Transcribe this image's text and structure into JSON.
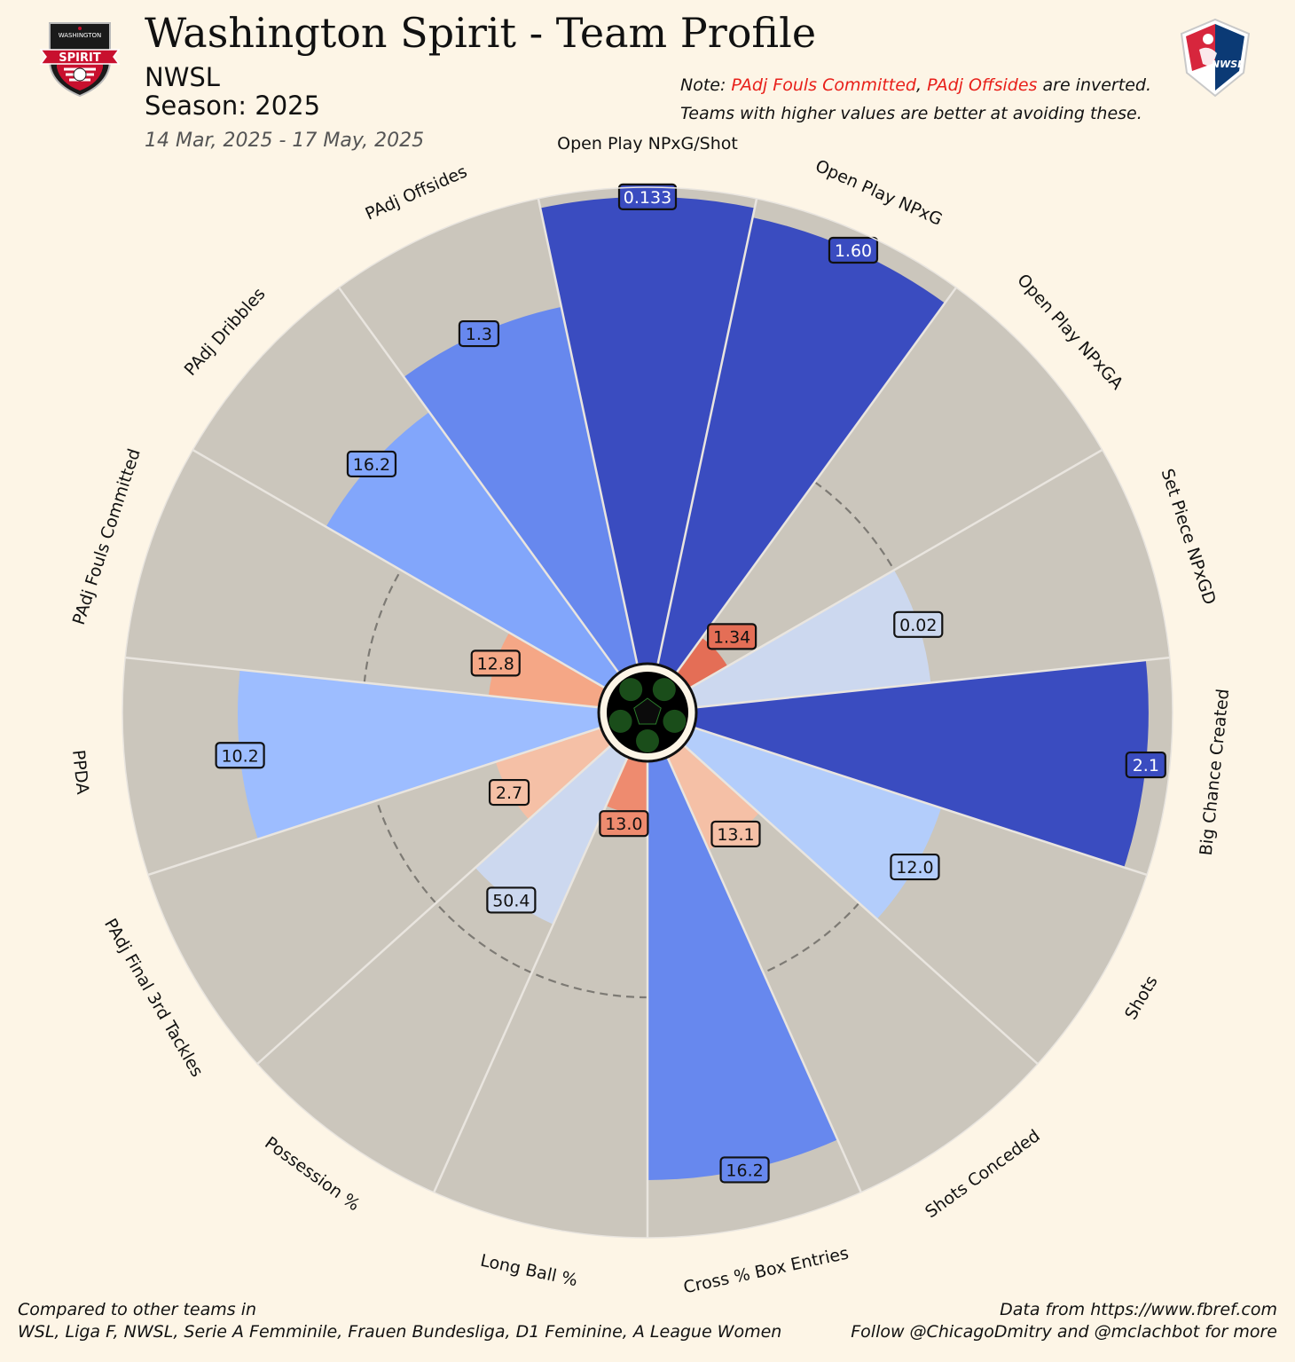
{
  "header": {
    "title": "Washington Spirit - Team Profile",
    "league": "NWSL",
    "season": "Season: 2025",
    "date_range": "14 Mar, 2025 - 17 May, 2025"
  },
  "note": {
    "prefix": "Note: ",
    "inverted_1": "PAdj Fouls Committed",
    "sep": ", ",
    "inverted_2": "PAdj Offsides",
    "suffix": " are inverted.",
    "line2": "Teams with higher values are better at avoiding these."
  },
  "footer": {
    "left_line1": "Compared to other teams in",
    "left_line2": "WSL, Liga F, NWSL, Serie A Femminile, Frauen Bundesliga, D1 Feminine, A League Women",
    "right_line1": "Data from https://www.fbref.com",
    "right_line2": "Follow @ChicagoDmitry and @mclachbot for more"
  },
  "logos": {
    "left": {
      "banner_text": "SPIRIT",
      "top_text": "WASHINGTON",
      "colors": [
        "#1a1a1a",
        "#c8102e",
        "#ffffff"
      ]
    },
    "right": {
      "text": "NWSL",
      "colors": [
        "#d7263d",
        "#0b3a75",
        "#ffffff"
      ]
    }
  },
  "chart_data": {
    "type": "polar-bar",
    "scale": "percentile",
    "rlim": [
      0,
      100
    ],
    "reference_ring": 50,
    "colors": {
      "background_slice": "#cbc6bc",
      "divider": "#e9e5df",
      "center_ball": "#000000"
    },
    "categories": [
      "Open Play NPxG/Shot",
      "Open Play NPxG",
      "Open Play NPxGA",
      "Set Piece NPxGD",
      "Big Chance Created",
      "Shots",
      "Shots Conceded",
      "Cross % Box Entries",
      "Long Ball %",
      "Possession %",
      "PAdj Final 3rd Tackles",
      "PPDA",
      "PAdj Fouls Committed",
      "PAdj Dribbles",
      "PAdj Offsides"
    ],
    "value_labels": [
      "0.133",
      "1.60",
      "1.34",
      "0.02",
      "2.1",
      "12.0",
      "13.1",
      "16.2",
      "13.0",
      "50.4",
      "2.7",
      "10.2",
      "12.8",
      "16.2",
      "1.3"
    ],
    "percentiles": [
      98,
      96,
      10,
      50,
      95,
      55,
      22,
      88,
      12,
      39,
      24,
      76,
      24,
      68,
      77
    ],
    "bar_colors": [
      "#3a4cc0",
      "#3a4cc0",
      "#e46e56",
      "#ccd8ef",
      "#3a4cc0",
      "#b3cdfb",
      "#f5c0a6",
      "#6788ee",
      "#ee8b6f",
      "#ccd8ef",
      "#f5c0a6",
      "#9dbdff",
      "#f5a786",
      "#82a6fb",
      "#6788ee"
    ]
  }
}
